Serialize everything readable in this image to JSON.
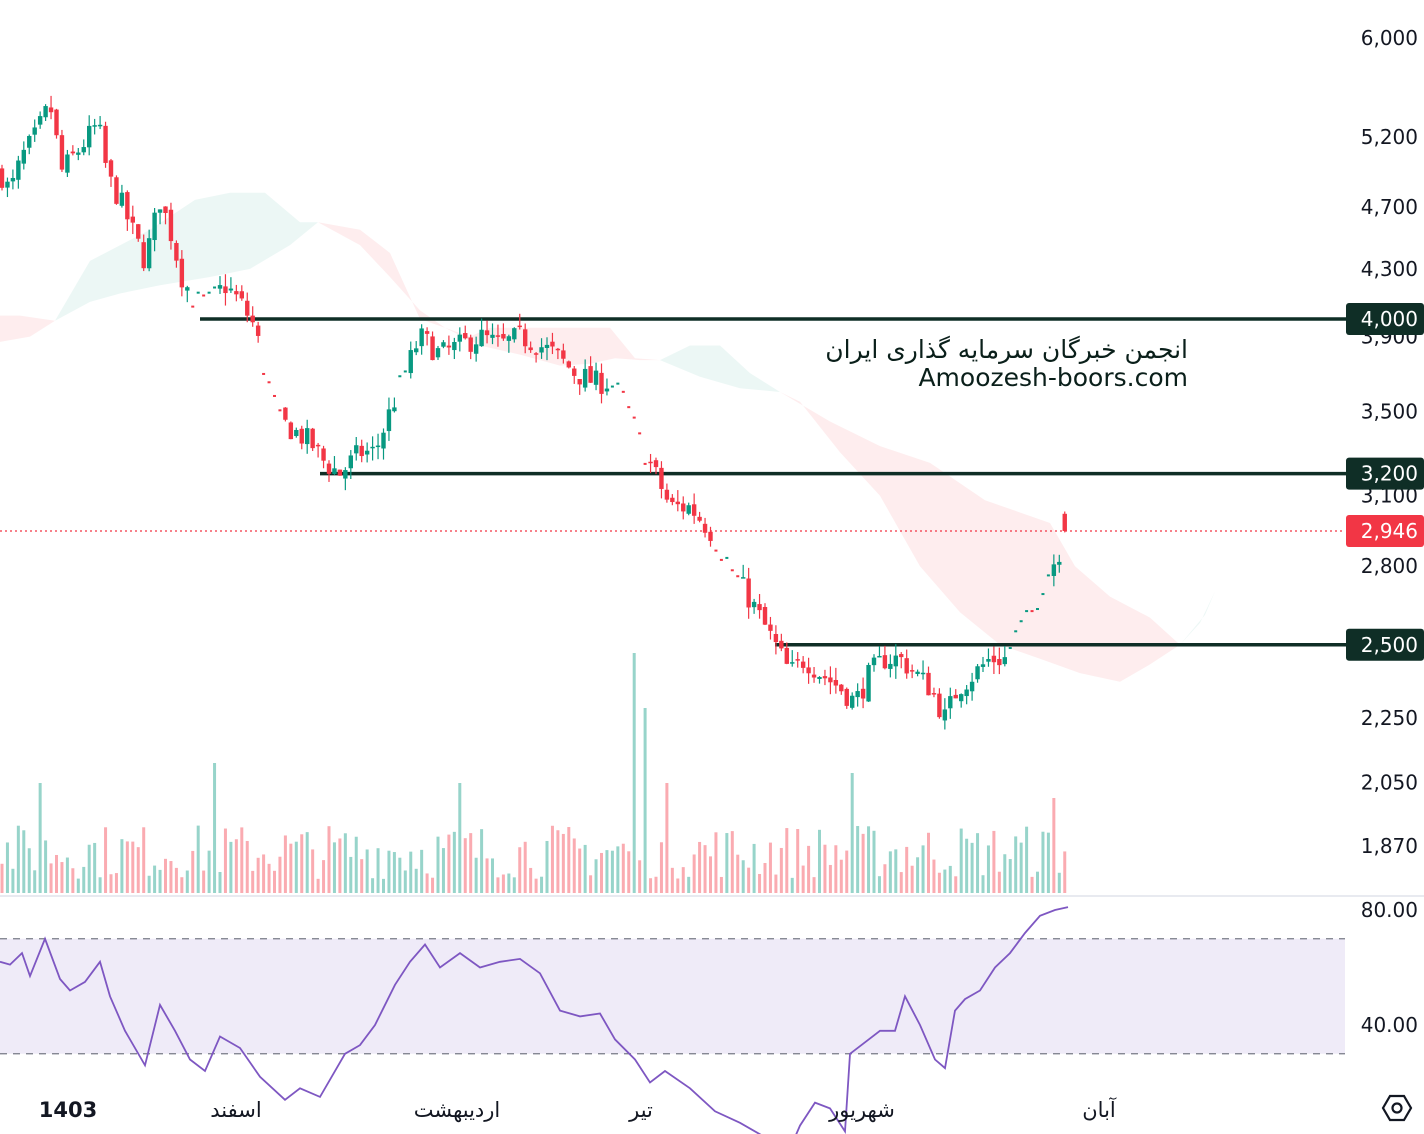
{
  "chart_data": {
    "type": "candlestick",
    "price_axis": {
      "scale": "log",
      "range": [
        1800,
        6300
      ],
      "ticks": [
        "6,000",
        "5,200",
        "4,700",
        "4,300",
        "3,900",
        "3,500",
        "3,100",
        "2,800",
        "2,250",
        "2,050",
        "1,870"
      ],
      "tick_values": [
        6000,
        5200,
        4700,
        4300,
        3900,
        3500,
        3100,
        2800,
        2250,
        2050,
        1870
      ]
    },
    "levels": [
      {
        "value": 4000,
        "label": "4,000",
        "color": "#0f2e26"
      },
      {
        "value": 3200,
        "label": "3,200",
        "color": "#0f2e26"
      },
      {
        "value": 2500,
        "label": "2,500",
        "color": "#0f2e26"
      }
    ],
    "last_price": {
      "value": 2946,
      "label": "2,946",
      "color": "#f23645"
    },
    "x_labels": [
      {
        "text": "1403",
        "bold": true
      },
      {
        "text": "اسفند",
        "bold": false
      },
      {
        "text": "اردیبهشت",
        "bold": false
      },
      {
        "text": "تیر",
        "bold": false
      },
      {
        "text": "شهریور",
        "bold": false
      },
      {
        "text": "آبان",
        "bold": false
      }
    ],
    "path_points": [
      [
        0,
        4950
      ],
      [
        10,
        4800
      ],
      [
        22,
        5050
      ],
      [
        35,
        5200
      ],
      [
        50,
        5450
      ],
      [
        62,
        4950
      ],
      [
        78,
        5100
      ],
      [
        98,
        5300
      ],
      [
        108,
        4900
      ],
      [
        120,
        4750
      ],
      [
        135,
        4500
      ],
      [
        145,
        4350
      ],
      [
        160,
        4750
      ],
      [
        170,
        4550
      ],
      [
        182,
        4250
      ],
      [
        195,
        4100
      ],
      [
        210,
        4100
      ],
      [
        225,
        4200
      ],
      [
        240,
        4100
      ],
      [
        255,
        3950
      ],
      [
        265,
        3700
      ],
      [
        280,
        3450
      ],
      [
        295,
        3400
      ],
      [
        310,
        3350
      ],
      [
        325,
        3250
      ],
      [
        340,
        3200
      ],
      [
        360,
        3300
      ],
      [
        375,
        3300
      ],
      [
        390,
        3500
      ],
      [
        405,
        3700
      ],
      [
        420,
        3900
      ],
      [
        440,
        3800
      ],
      [
        460,
        3850
      ],
      [
        480,
        3900
      ],
      [
        500,
        3850
      ],
      [
        520,
        3900
      ],
      [
        540,
        3850
      ],
      [
        555,
        3800
      ],
      [
        575,
        3700
      ],
      [
        595,
        3650
      ],
      [
        610,
        3650
      ],
      [
        625,
        3550
      ],
      [
        640,
        3350
      ],
      [
        655,
        3200
      ],
      [
        670,
        3050
      ],
      [
        690,
        3050
      ],
      [
        710,
        2950
      ],
      [
        730,
        2800
      ],
      [
        745,
        2700
      ],
      [
        760,
        2600
      ],
      [
        775,
        2500
      ],
      [
        790,
        2400
      ],
      [
        805,
        2450
      ],
      [
        820,
        2400
      ],
      [
        840,
        2350
      ],
      [
        855,
        2300
      ],
      [
        870,
        2400
      ],
      [
        885,
        2450
      ],
      [
        900,
        2450
      ],
      [
        915,
        2400
      ],
      [
        930,
        2350
      ],
      [
        945,
        2250
      ],
      [
        958,
        2350
      ],
      [
        975,
        2400
      ],
      [
        990,
        2450
      ],
      [
        1005,
        2450
      ],
      [
        1018,
        2550
      ],
      [
        1030,
        2600
      ],
      [
        1045,
        2750
      ],
      [
        1058,
        2850
      ],
      [
        1068,
        2946
      ]
    ],
    "cloud_segments": [
      {
        "color": "#f23645",
        "opacity": 0.09,
        "upper": [
          [
            0,
            4020
          ],
          [
            20,
            4020
          ],
          [
            55,
            3990
          ]
        ],
        "lower": [
          [
            55,
            3990
          ],
          [
            30,
            3900
          ],
          [
            0,
            3870
          ]
        ]
      },
      {
        "color": "#089981",
        "opacity": 0.08,
        "upper": [
          [
            55,
            3990
          ],
          [
            90,
            4350
          ],
          [
            150,
            4550
          ],
          [
            195,
            4750
          ],
          [
            230,
            4800
          ],
          [
            265,
            4800
          ],
          [
            300,
            4600
          ],
          [
            318,
            4600
          ]
        ],
        "lower": [
          [
            318,
            4600
          ],
          [
            290,
            4450
          ],
          [
            250,
            4300
          ],
          [
            210,
            4250
          ],
          [
            160,
            4200
          ],
          [
            120,
            4150
          ],
          [
            90,
            4100
          ],
          [
            55,
            3990
          ]
        ]
      },
      {
        "color": "#f23645",
        "opacity": 0.09,
        "upper": [
          [
            318,
            4600
          ],
          [
            360,
            4550
          ],
          [
            390,
            4400
          ],
          [
            420,
            4000
          ],
          [
            445,
            3950
          ],
          [
            470,
            3900
          ],
          [
            490,
            3950
          ],
          [
            520,
            3950
          ],
          [
            560,
            3950
          ],
          [
            610,
            3950
          ],
          [
            635,
            3780
          ],
          [
            660,
            3770
          ]
        ],
        "lower": [
          [
            660,
            3770
          ],
          [
            640,
            3770
          ],
          [
            615,
            3780
          ],
          [
            590,
            3750
          ],
          [
            560,
            3740
          ],
          [
            520,
            3800
          ],
          [
            480,
            3850
          ],
          [
            445,
            3950
          ],
          [
            420,
            4050
          ],
          [
            390,
            4250
          ],
          [
            360,
            4450
          ],
          [
            318,
            4600
          ]
        ]
      },
      {
        "color": "#089981",
        "opacity": 0.08,
        "upper": [
          [
            660,
            3770
          ],
          [
            690,
            3850
          ],
          [
            720,
            3850
          ],
          [
            750,
            3700
          ],
          [
            780,
            3600
          ]
        ],
        "lower": [
          [
            780,
            3600
          ],
          [
            740,
            3620
          ],
          [
            700,
            3680
          ],
          [
            660,
            3770
          ]
        ]
      },
      {
        "color": "#f23645",
        "opacity": 0.09,
        "upper": [
          [
            780,
            3600
          ],
          [
            830,
            3450
          ],
          [
            880,
            3330
          ],
          [
            930,
            3250
          ],
          [
            985,
            3080
          ],
          [
            1050,
            2980
          ],
          [
            1075,
            2800
          ],
          [
            1110,
            2680
          ],
          [
            1150,
            2600
          ],
          [
            1180,
            2500
          ]
        ],
        "lower": [
          [
            1180,
            2500
          ],
          [
            1150,
            2430
          ],
          [
            1120,
            2370
          ],
          [
            1080,
            2400
          ],
          [
            1040,
            2450
          ],
          [
            1000,
            2500
          ],
          [
            960,
            2620
          ],
          [
            920,
            2800
          ],
          [
            880,
            3100
          ],
          [
            840,
            3300
          ],
          [
            800,
            3550
          ],
          [
            780,
            3600
          ]
        ]
      },
      {
        "color": "#089981",
        "opacity": 0.08,
        "upper": [
          [
            1180,
            2500
          ],
          [
            1200,
            2580
          ],
          [
            1215,
            2700
          ]
        ],
        "lower": [
          [
            1215,
            2700
          ],
          [
            1205,
            2610
          ],
          [
            1180,
            2500
          ]
        ]
      }
    ],
    "volume_spikes": [
      {
        "x": 40,
        "h": 110,
        "up": true
      },
      {
        "x": 212,
        "h": 130,
        "up": true
      },
      {
        "x": 460,
        "h": 110,
        "up": true
      },
      {
        "x": 635,
        "h": 240,
        "up": true
      },
      {
        "x": 647,
        "h": 185,
        "up": true
      },
      {
        "x": 669,
        "h": 110,
        "up": false
      },
      {
        "x": 850,
        "h": 120,
        "up": true
      },
      {
        "x": 1052,
        "h": 95,
        "up": false
      }
    ],
    "rsi": {
      "ticks": [
        "80.00",
        "40.00"
      ],
      "tick_values": [
        80,
        40
      ],
      "band": [
        70,
        30
      ],
      "range": [
        15,
        90
      ],
      "color": "#7e57c2",
      "band_color": "#7e57c2",
      "points": [
        [
          0,
          62
        ],
        [
          10,
          61
        ],
        [
          22,
          65
        ],
        [
          30,
          57
        ],
        [
          45,
          70
        ],
        [
          60,
          56
        ],
        [
          70,
          52
        ],
        [
          85,
          55
        ],
        [
          100,
          62
        ],
        [
          110,
          50
        ],
        [
          125,
          38
        ],
        [
          145,
          26
        ],
        [
          160,
          47
        ],
        [
          175,
          38
        ],
        [
          190,
          28
        ],
        [
          205,
          24
        ],
        [
          220,
          36
        ],
        [
          240,
          32
        ],
        [
          260,
          22
        ],
        [
          285,
          14
        ],
        [
          300,
          18
        ],
        [
          320,
          15
        ],
        [
          345,
          30
        ],
        [
          360,
          33
        ],
        [
          375,
          40
        ],
        [
          395,
          54
        ],
        [
          410,
          62
        ],
        [
          425,
          68
        ],
        [
          440,
          60
        ],
        [
          460,
          65
        ],
        [
          480,
          60
        ],
        [
          500,
          62
        ],
        [
          520,
          63
        ],
        [
          540,
          58
        ],
        [
          560,
          45
        ],
        [
          580,
          43
        ],
        [
          600,
          44
        ],
        [
          615,
          35
        ],
        [
          635,
          28
        ],
        [
          650,
          20
        ],
        [
          665,
          24
        ],
        [
          690,
          18
        ],
        [
          715,
          10
        ],
        [
          740,
          6
        ],
        [
          760,
          2
        ],
        [
          780,
          -2
        ],
        [
          790,
          -3
        ],
        [
          800,
          5
        ],
        [
          815,
          13
        ],
        [
          830,
          11
        ],
        [
          845,
          3
        ],
        [
          850,
          30
        ],
        [
          865,
          34
        ],
        [
          880,
          38
        ],
        [
          895,
          38
        ],
        [
          905,
          50
        ],
        [
          920,
          40
        ],
        [
          935,
          28
        ],
        [
          945,
          25
        ],
        [
          955,
          45
        ],
        [
          965,
          49
        ],
        [
          980,
          52
        ],
        [
          995,
          60
        ],
        [
          1010,
          65
        ],
        [
          1025,
          72
        ],
        [
          1040,
          78
        ],
        [
          1055,
          80
        ],
        [
          1068,
          81
        ]
      ]
    }
  },
  "watermark": {
    "line1": "انجمن خبرگان سرمایه گذاری ایران",
    "line2": "Amoozesh-boors.com"
  },
  "colors": {
    "up": "#089981",
    "down": "#f23645",
    "level": "#0f2e26",
    "background": "#ffffff"
  },
  "icons": {
    "corner": "settings-hex-icon"
  }
}
